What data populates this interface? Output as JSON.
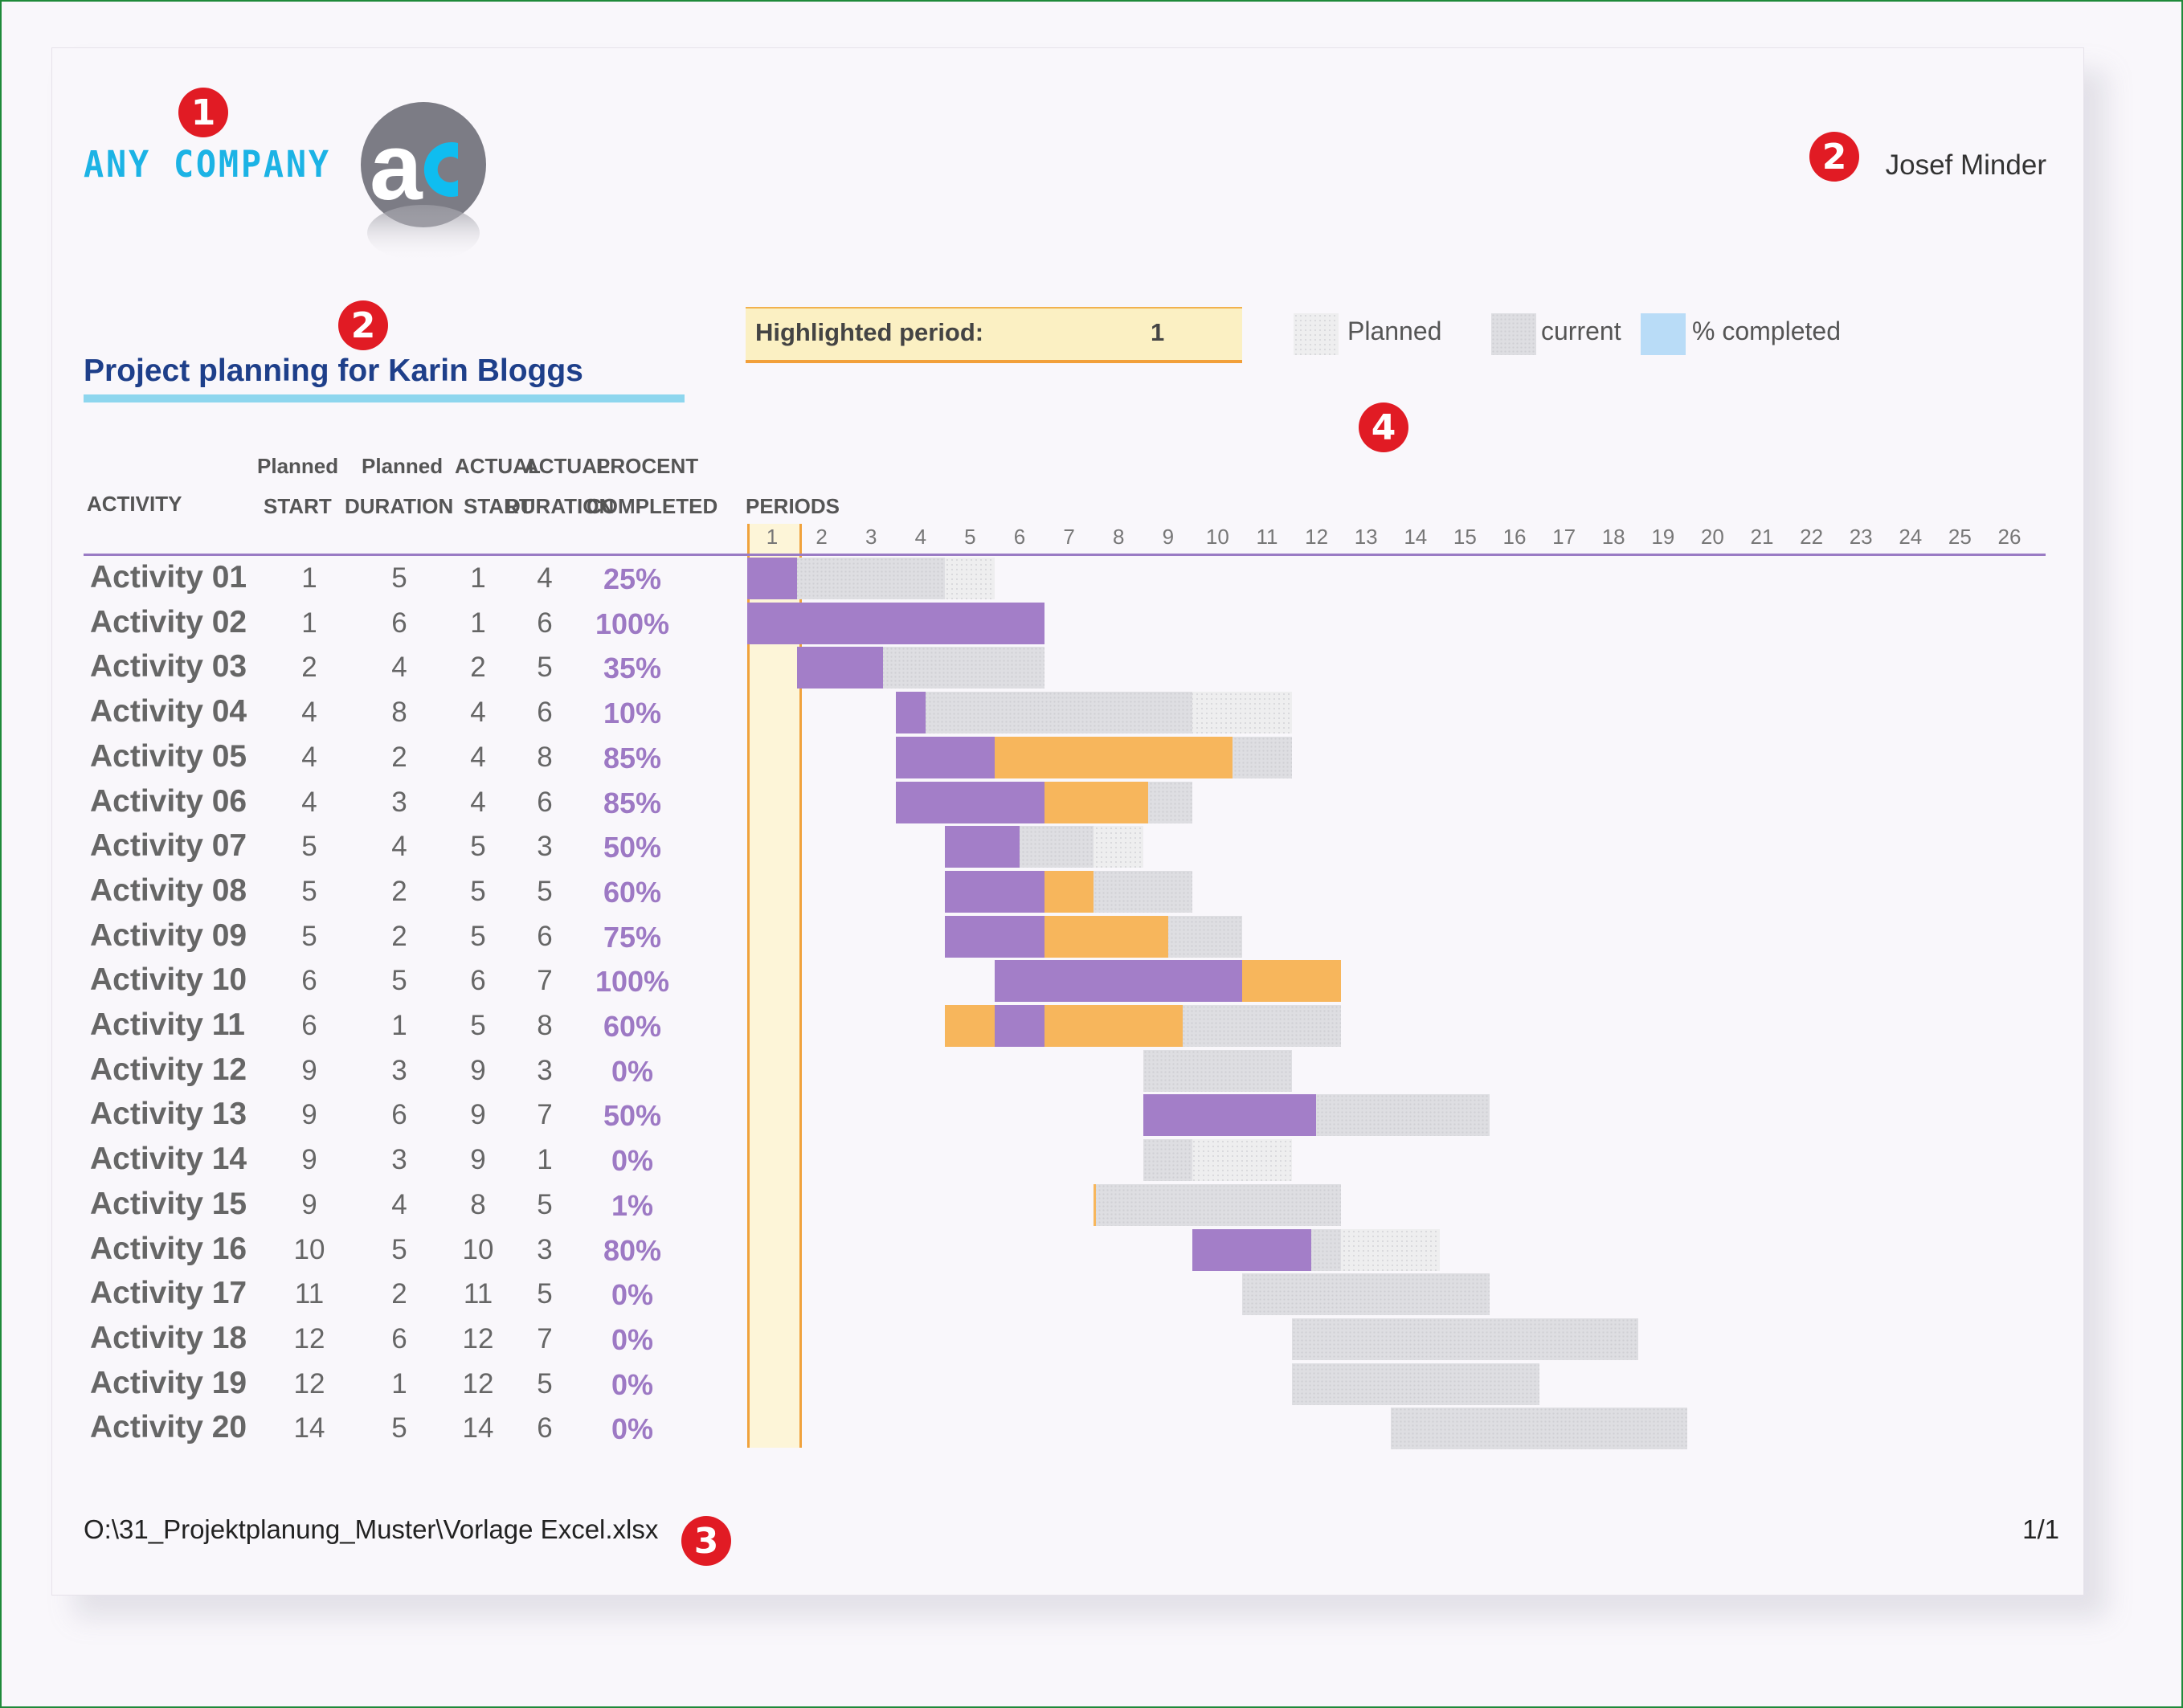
{
  "header": {
    "company": "ANY COMPANY",
    "logo_text": "aC",
    "author": "Josef Minder",
    "title": "Project planning for Karin Bloggs",
    "badges": [
      "1",
      "2",
      "2",
      "3",
      "4"
    ]
  },
  "highlight": {
    "label": "Highlighted period:",
    "value": "1"
  },
  "legend": {
    "planned": "Planned",
    "current": "current",
    "completed": "% completed"
  },
  "columns": {
    "activity": "ACTIVITY",
    "planned_top": "Planned",
    "planned_start": "START",
    "planned_top2": "Planned",
    "planned_duration": "DURATION",
    "actual_start_top": "ACTUAL",
    "actual_start": "START",
    "actual_duration_top": "ACTUAL",
    "actual_duration": "DURATION",
    "pct_top": "PROCENT",
    "pct_bottom": "COMPLETED",
    "periods": "PERIODS"
  },
  "colors": {
    "pct_bar": "#a37ec8",
    "over_plan": "#f7b65c",
    "highlight": "#fbf0c3",
    "accent": "#1cb3e5"
  },
  "chart_data": {
    "type": "gantt",
    "periods": [
      1,
      2,
      3,
      4,
      5,
      6,
      7,
      8,
      9,
      10,
      11,
      12,
      13,
      14,
      15,
      16,
      17,
      18,
      19,
      20,
      21,
      22,
      23,
      24,
      25,
      26
    ],
    "highlighted_period": 1,
    "activities": [
      {
        "name": "Activity 01",
        "plan_start": 1,
        "plan_duration": 5,
        "actual_start": 1,
        "actual_duration": 4,
        "percent": "25%"
      },
      {
        "name": "Activity 02",
        "plan_start": 1,
        "plan_duration": 6,
        "actual_start": 1,
        "actual_duration": 6,
        "percent": "100%"
      },
      {
        "name": "Activity 03",
        "plan_start": 2,
        "plan_duration": 4,
        "actual_start": 2,
        "actual_duration": 5,
        "percent": "35%"
      },
      {
        "name": "Activity 04",
        "plan_start": 4,
        "plan_duration": 8,
        "actual_start": 4,
        "actual_duration": 6,
        "percent": "10%"
      },
      {
        "name": "Activity 05",
        "plan_start": 4,
        "plan_duration": 2,
        "actual_start": 4,
        "actual_duration": 8,
        "percent": "85%"
      },
      {
        "name": "Activity 06",
        "plan_start": 4,
        "plan_duration": 3,
        "actual_start": 4,
        "actual_duration": 6,
        "percent": "85%"
      },
      {
        "name": "Activity 07",
        "plan_start": 5,
        "plan_duration": 4,
        "actual_start": 5,
        "actual_duration": 3,
        "percent": "50%"
      },
      {
        "name": "Activity 08",
        "plan_start": 5,
        "plan_duration": 2,
        "actual_start": 5,
        "actual_duration": 5,
        "percent": "60%"
      },
      {
        "name": "Activity 09",
        "plan_start": 5,
        "plan_duration": 2,
        "actual_start": 5,
        "actual_duration": 6,
        "percent": "75%"
      },
      {
        "name": "Activity 10",
        "plan_start": 6,
        "plan_duration": 5,
        "actual_start": 6,
        "actual_duration": 7,
        "percent": "100%"
      },
      {
        "name": "Activity 11",
        "plan_start": 6,
        "plan_duration": 1,
        "actual_start": 5,
        "actual_duration": 8,
        "percent": "60%"
      },
      {
        "name": "Activity 12",
        "plan_start": 9,
        "plan_duration": 3,
        "actual_start": 9,
        "actual_duration": 3,
        "percent": "0%"
      },
      {
        "name": "Activity 13",
        "plan_start": 9,
        "plan_duration": 6,
        "actual_start": 9,
        "actual_duration": 7,
        "percent": "50%"
      },
      {
        "name": "Activity 14",
        "plan_start": 9,
        "plan_duration": 3,
        "actual_start": 9,
        "actual_duration": 1,
        "percent": "0%"
      },
      {
        "name": "Activity 15",
        "plan_start": 9,
        "plan_duration": 4,
        "actual_start": 8,
        "actual_duration": 5,
        "percent": "1%"
      },
      {
        "name": "Activity 16",
        "plan_start": 10,
        "plan_duration": 5,
        "actual_start": 10,
        "actual_duration": 3,
        "percent": "80%"
      },
      {
        "name": "Activity 17",
        "plan_start": 11,
        "plan_duration": 2,
        "actual_start": 11,
        "actual_duration": 5,
        "percent": "0%"
      },
      {
        "name": "Activity 18",
        "plan_start": 12,
        "plan_duration": 6,
        "actual_start": 12,
        "actual_duration": 7,
        "percent": "0%"
      },
      {
        "name": "Activity 19",
        "plan_start": 12,
        "plan_duration": 1,
        "actual_start": 12,
        "actual_duration": 5,
        "percent": "0%"
      },
      {
        "name": "Activity 20",
        "plan_start": 14,
        "plan_duration": 5,
        "actual_start": 14,
        "actual_duration": 6,
        "percent": "0%"
      }
    ]
  },
  "footer": {
    "path": "O:\\31_Projektplanung_Muster\\Vorlage Excel.xlsx",
    "page": "1/1"
  }
}
